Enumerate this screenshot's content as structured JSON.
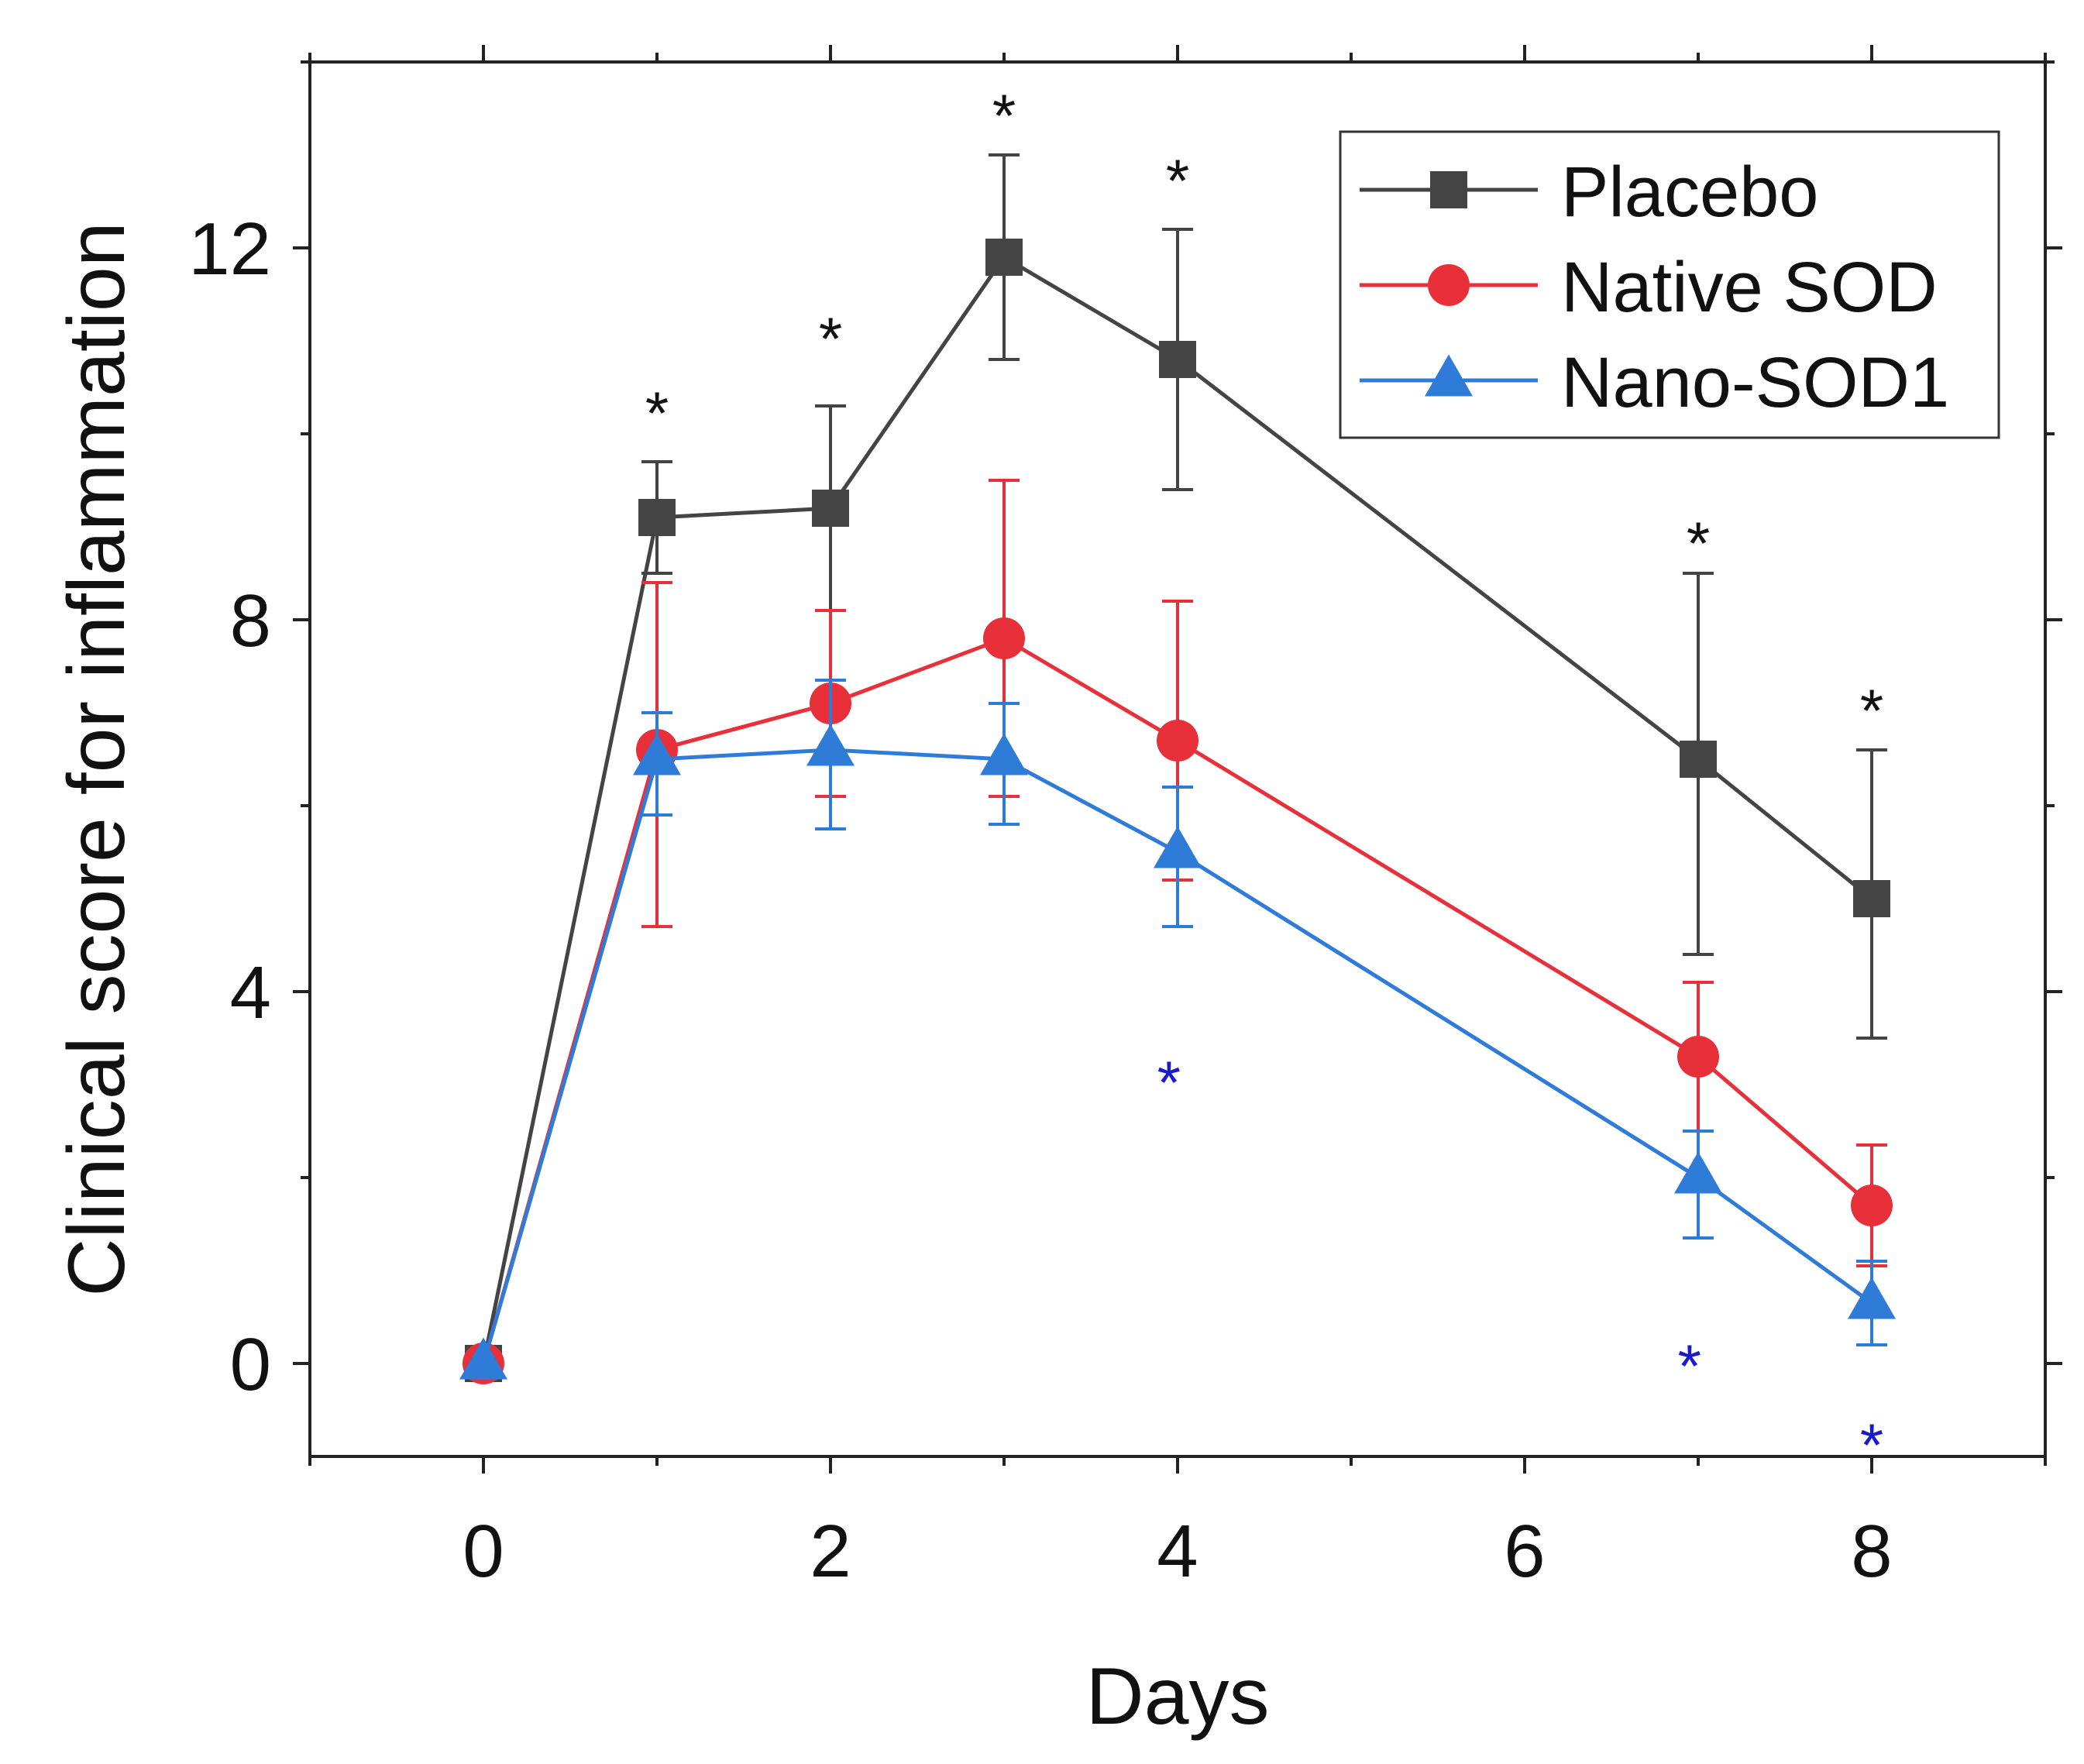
{
  "chart_data": {
    "type": "line",
    "title": "",
    "xlabel": "Days",
    "ylabel": "Clinical score for inflammation",
    "xlim": [
      -1,
      9
    ],
    "ylim": [
      -1,
      14
    ],
    "xticks": [
      0,
      2,
      4,
      6,
      8
    ],
    "xtick_labels": [
      "0",
      "2",
      "4",
      "6",
      "8"
    ],
    "yticks": [
      0,
      4,
      8,
      12
    ],
    "ytick_labels": [
      "0",
      "4",
      "8",
      "12"
    ],
    "grid": false,
    "legend_position": "top-right",
    "series": [
      {
        "name": "Placebo",
        "color": "#444444",
        "marker": "square",
        "x": [
          0,
          1,
          2,
          3,
          4,
          7,
          8
        ],
        "y": [
          0,
          9.1,
          9.2,
          11.9,
          10.8,
          6.5,
          5.0
        ],
        "err_upper": [
          0,
          0.6,
          1.1,
          1.1,
          1.4,
          2.0,
          1.6
        ],
        "err_lower": [
          0,
          0.6,
          1.1,
          1.1,
          1.4,
          2.1,
          1.5
        ]
      },
      {
        "name": "Native SOD",
        "color": "#e8303a",
        "marker": "circle",
        "x": [
          0,
          1,
          2,
          3,
          4,
          7,
          8
        ],
        "y": [
          0,
          6.6,
          7.1,
          7.8,
          6.7,
          3.3,
          1.7
        ],
        "err_upper": [
          0,
          1.8,
          1.0,
          1.7,
          1.5,
          0.8,
          0.65
        ],
        "err_lower": [
          0,
          1.9,
          1.0,
          1.7,
          1.5,
          0.8,
          0.65
        ]
      },
      {
        "name": "Nano-SOD1",
        "color": "#2f7bd8",
        "marker": "triangle",
        "x": [
          0,
          1,
          2,
          3,
          4,
          7,
          8
        ],
        "y": [
          0,
          6.5,
          6.6,
          6.5,
          5.5,
          2.0,
          0.65
        ],
        "err_upper": [
          0,
          0.5,
          0.75,
          0.6,
          0.7,
          0.5,
          0.45
        ],
        "err_lower": [
          0,
          0.6,
          0.85,
          0.7,
          0.8,
          0.65,
          0.45
        ]
      }
    ],
    "annotations": [
      {
        "text": "*",
        "x": 1,
        "y": 10.3,
        "color": "#111111"
      },
      {
        "text": "*",
        "x": 2,
        "y": 11.1,
        "color": "#111111"
      },
      {
        "text": "*",
        "x": 3,
        "y": 13.5,
        "color": "#111111"
      },
      {
        "text": "*",
        "x": 4,
        "y": 12.8,
        "color": "#111111"
      },
      {
        "text": "*",
        "x": 7,
        "y": 8.9,
        "color": "#111111"
      },
      {
        "text": "*",
        "x": 8,
        "y": 7.1,
        "color": "#111111"
      },
      {
        "text": "*",
        "x": 3.95,
        "y": 3.1,
        "color": "#1a1acc"
      },
      {
        "text": "*",
        "x": 6.95,
        "y": 0.05,
        "color": "#1a1acc"
      },
      {
        "text": "*",
        "x": 8,
        "y": -0.8,
        "color": "#1a1acc"
      }
    ]
  }
}
